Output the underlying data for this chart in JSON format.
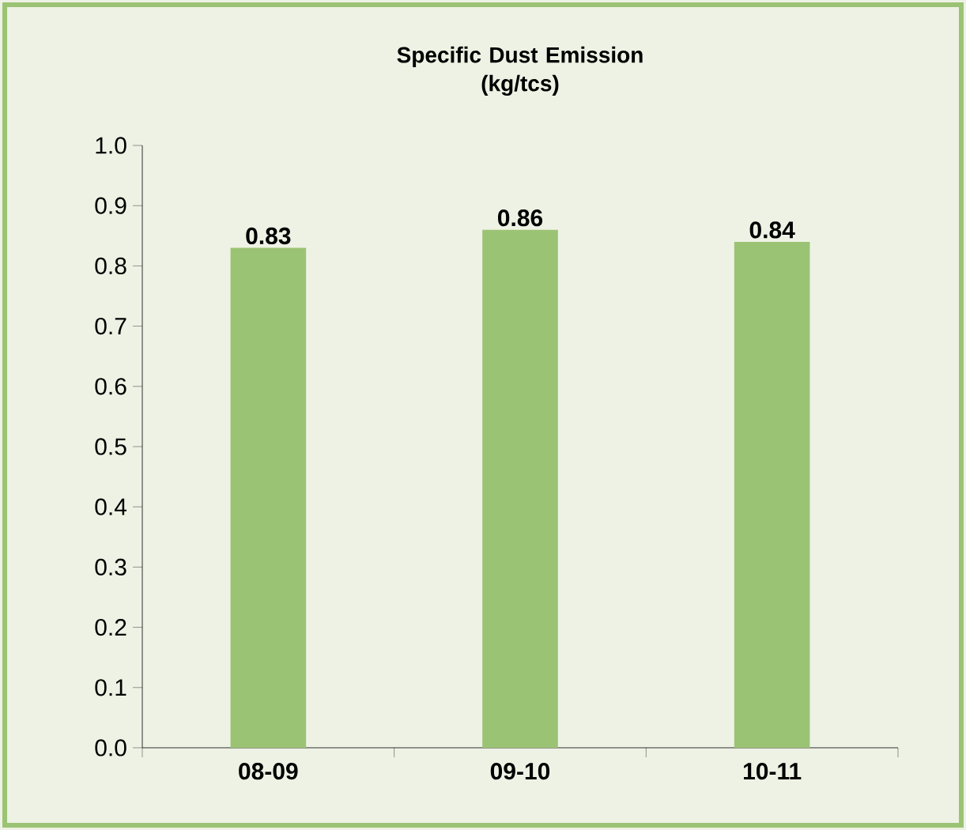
{
  "chart_data": {
    "type": "bar",
    "title": "Specific Dust Emission\n(kg/tcs)",
    "categories": [
      "08-09",
      "09-10",
      "10-11"
    ],
    "values": [
      0.83,
      0.86,
      0.84
    ],
    "color": "#9bc374",
    "ylim": [
      0,
      1
    ],
    "yticks": [
      {
        "value": 0,
        "label": "0.0"
      },
      {
        "value": 0.1,
        "label": "0.1"
      },
      {
        "value": 0.2,
        "label": "0.2"
      },
      {
        "value": 0.3,
        "label": "0.3"
      },
      {
        "value": 0.4,
        "label": "0.4"
      },
      {
        "value": 0.5,
        "label": "0.5"
      },
      {
        "value": 0.6,
        "label": "0.6"
      },
      {
        "value": 0.7,
        "label": "0.7"
      },
      {
        "value": 0.8,
        "label": "0.8"
      },
      {
        "value": 0.9,
        "label": "0.9"
      },
      {
        "value": 1,
        "label": "1.0"
      }
    ],
    "data_labels": true
  }
}
